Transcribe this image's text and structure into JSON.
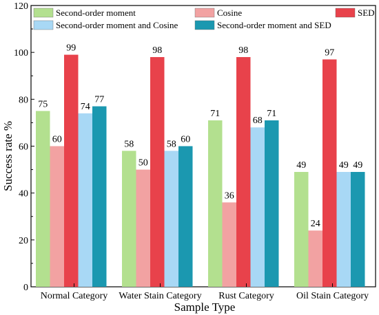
{
  "chart_data": {
    "type": "bar",
    "title": "",
    "xlabel": "Sample Type",
    "ylabel": "Success rate %",
    "ylim": [
      0,
      120
    ],
    "yticks": [
      0,
      20,
      40,
      60,
      80,
      100,
      120
    ],
    "grid": false,
    "legend_position": "top",
    "categories": [
      "Normal Category",
      "Water Stain Category",
      "Rust Category",
      "Oil Stain Category"
    ],
    "series": [
      {
        "name": "Second-order moment",
        "color": "#b3e08f",
        "values": [
          75,
          58,
          71,
          49
        ]
      },
      {
        "name": "Cosine",
        "color": "#f2a2a2",
        "values": [
          60,
          50,
          36,
          24
        ]
      },
      {
        "name": "SED",
        "color": "#e8424b",
        "values": [
          99,
          98,
          98,
          97
        ]
      },
      {
        "name": "Second-order moment and Cosine",
        "color": "#a8d8f5",
        "values": [
          74,
          58,
          68,
          49
        ]
      },
      {
        "name": "Second-order moment and SED",
        "color": "#1b98b0",
        "values": [
          77,
          60,
          71,
          49
        ]
      }
    ]
  }
}
